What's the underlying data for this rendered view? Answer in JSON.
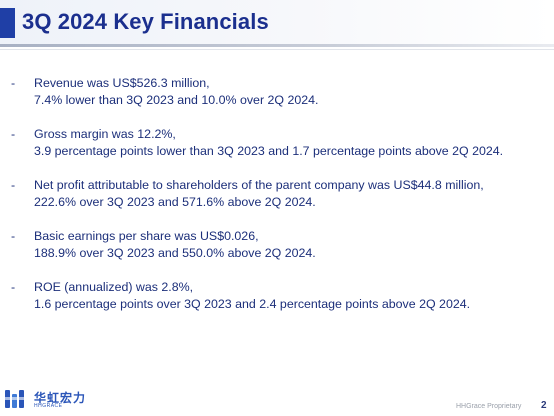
{
  "slide": {
    "title": "3Q 2024 Key Financials",
    "page_number": "2",
    "footer_text": "HHGrace Proprietary"
  },
  "logo": {
    "text": "华虹宏力",
    "subtext": "HHGRACE"
  },
  "bullets": [
    {
      "marker": "-",
      "lines": [
        "Revenue was US$526.3 million,",
        "7.4% lower than 3Q 2023 and 10.0% over 2Q 2024."
      ]
    },
    {
      "marker": "-",
      "lines": [
        "Gross margin was 12.2%,",
        "3.9 percentage points lower than 3Q 2023 and 1.7 percentage points above 2Q 2024."
      ]
    },
    {
      "marker": "-",
      "lines": [
        "Net profit attributable to shareholders of the parent company was US$44.8 million,",
        "222.6% over 3Q 2023 and 571.6% above 2Q 2024."
      ]
    },
    {
      "marker": "-",
      "lines": [
        "Basic earnings per share was US$0.026,",
        "188.9% over 3Q 2023 and 550.0% above 2Q 2024."
      ]
    },
    {
      "marker": "-",
      "lines": [
        "ROE (annualized) was 2.8%,",
        "1.6 percentage points over 3Q 2023 and 2.4 percentage points above 2Q 2024."
      ]
    }
  ],
  "colors": {
    "title": "#1b2f8e",
    "accent": "#1f3fa6",
    "body_text": "#1c2f7a",
    "logo": "#2a55b8"
  }
}
